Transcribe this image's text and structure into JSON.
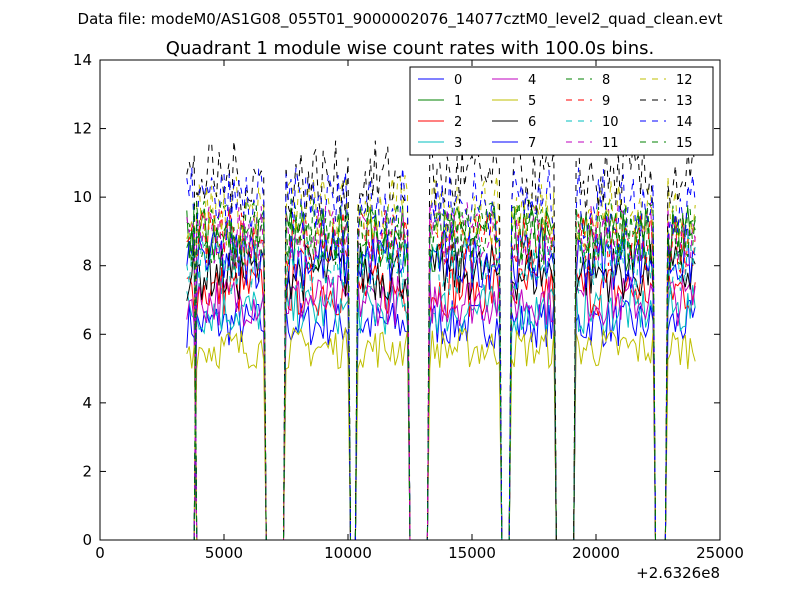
{
  "header": {
    "data_file": "Data file: modeM0/AS1G08_055T01_9000002076_14077cztM0_level2_quad_clean.evt"
  },
  "chart_data": {
    "type": "line",
    "title": "Quadrant 1 module wise count rates with 100.0s bins.",
    "xlabel": "",
    "ylabel": "",
    "xlim": [
      0,
      25000
    ],
    "ylim": [
      0,
      14
    ],
    "x_offset_label": "+2.6326e8",
    "xticks": [
      0,
      5000,
      10000,
      15000,
      20000,
      25000
    ],
    "xtick_labels": [
      "0",
      "5000",
      "10000",
      "15000",
      "20000",
      "25000"
    ],
    "yticks": [
      0,
      2,
      4,
      6,
      8,
      10,
      12,
      14
    ],
    "ytick_labels": [
      "0",
      "2",
      "4",
      "6",
      "8",
      "10",
      "12",
      "14"
    ],
    "grid": false,
    "legend": {
      "placement": "top-right",
      "columns": 4
    },
    "segments": [
      [
        3500,
        3800
      ],
      [
        3900,
        6600
      ],
      [
        7500,
        10000
      ],
      [
        10400,
        12400
      ],
      [
        13300,
        16100
      ],
      [
        16600,
        18300
      ],
      [
        19200,
        22300
      ],
      [
        22900,
        24000
      ]
    ],
    "series": [
      {
        "name": "0",
        "color": "#0000ff",
        "style": "solid",
        "level": 6.3
      },
      {
        "name": "1",
        "color": "#008000",
        "style": "solid",
        "level": 8.8
      },
      {
        "name": "2",
        "color": "#ff0000",
        "style": "solid",
        "level": 7.3
      },
      {
        "name": "3",
        "color": "#00bfbf",
        "style": "solid",
        "level": 6.7
      },
      {
        "name": "4",
        "color": "#bf00bf",
        "style": "solid",
        "level": 7.0
      },
      {
        "name": "5",
        "color": "#bfbf00",
        "style": "solid",
        "level": 5.6
      },
      {
        "name": "6",
        "color": "#000000",
        "style": "solid",
        "level": 7.8
      },
      {
        "name": "7",
        "color": "#0000ff",
        "style": "solid",
        "level": 8.2
      },
      {
        "name": "8",
        "color": "#008000",
        "style": "dashed",
        "level": 9.0
      },
      {
        "name": "9",
        "color": "#ff0000",
        "style": "dashed",
        "level": 8.7
      },
      {
        "name": "10",
        "color": "#00bfbf",
        "style": "dashed",
        "level": 8.0
      },
      {
        "name": "11",
        "color": "#bf00bf",
        "style": "dashed",
        "level": 8.9
      },
      {
        "name": "12",
        "color": "#bfbf00",
        "style": "dashed",
        "level": 9.6
      },
      {
        "name": "13",
        "color": "#000000",
        "style": "dashed",
        "level": 10.5
      },
      {
        "name": "14",
        "color": "#0000ff",
        "style": "dashed",
        "level": 9.8
      },
      {
        "name": "15",
        "color": "#008000",
        "style": "dashed",
        "level": 8.9
      }
    ]
  }
}
